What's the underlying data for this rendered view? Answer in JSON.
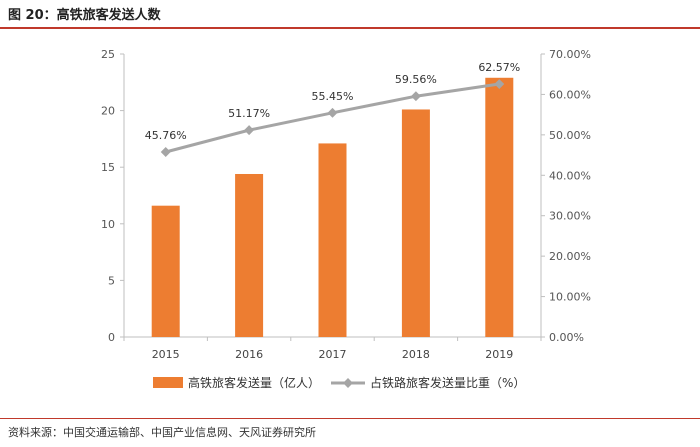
{
  "figure": {
    "title": "图 20：高铁旅客发送人数",
    "source": "资料来源：中国交通运输部、中国产业信息网、天风证券研究所"
  },
  "colors": {
    "bar": "#ed7d31",
    "line": "#a5a5a5",
    "accent": "#c0392b",
    "axis": "#bfbfbf"
  },
  "chart_data": {
    "type": "bar",
    "categories": [
      "2015",
      "2016",
      "2017",
      "2018",
      "2019"
    ],
    "series": [
      {
        "name": "高铁旅客发送量（亿人）",
        "type": "bar",
        "axis": "left",
        "values": [
          11.6,
          14.4,
          17.1,
          20.1,
          22.9
        ]
      },
      {
        "name": "占铁路旅客发送量比重（%）",
        "type": "line",
        "axis": "right",
        "values": [
          45.76,
          51.17,
          55.45,
          59.56,
          62.57
        ],
        "labels": [
          "45.76%",
          "51.17%",
          "55.45%",
          "59.56%",
          "62.57%"
        ]
      }
    ],
    "y_left": {
      "lim": [
        0,
        25
      ],
      "ticks": [
        "0",
        "5",
        "10",
        "15",
        "20",
        "25"
      ]
    },
    "y_right": {
      "lim": [
        0,
        70
      ],
      "ticks": [
        "0.00%",
        "10.00%",
        "20.00%",
        "30.00%",
        "40.00%",
        "50.00%",
        "60.00%",
        "70.00%"
      ]
    },
    "legend_position": "bottom",
    "grid": false
  }
}
